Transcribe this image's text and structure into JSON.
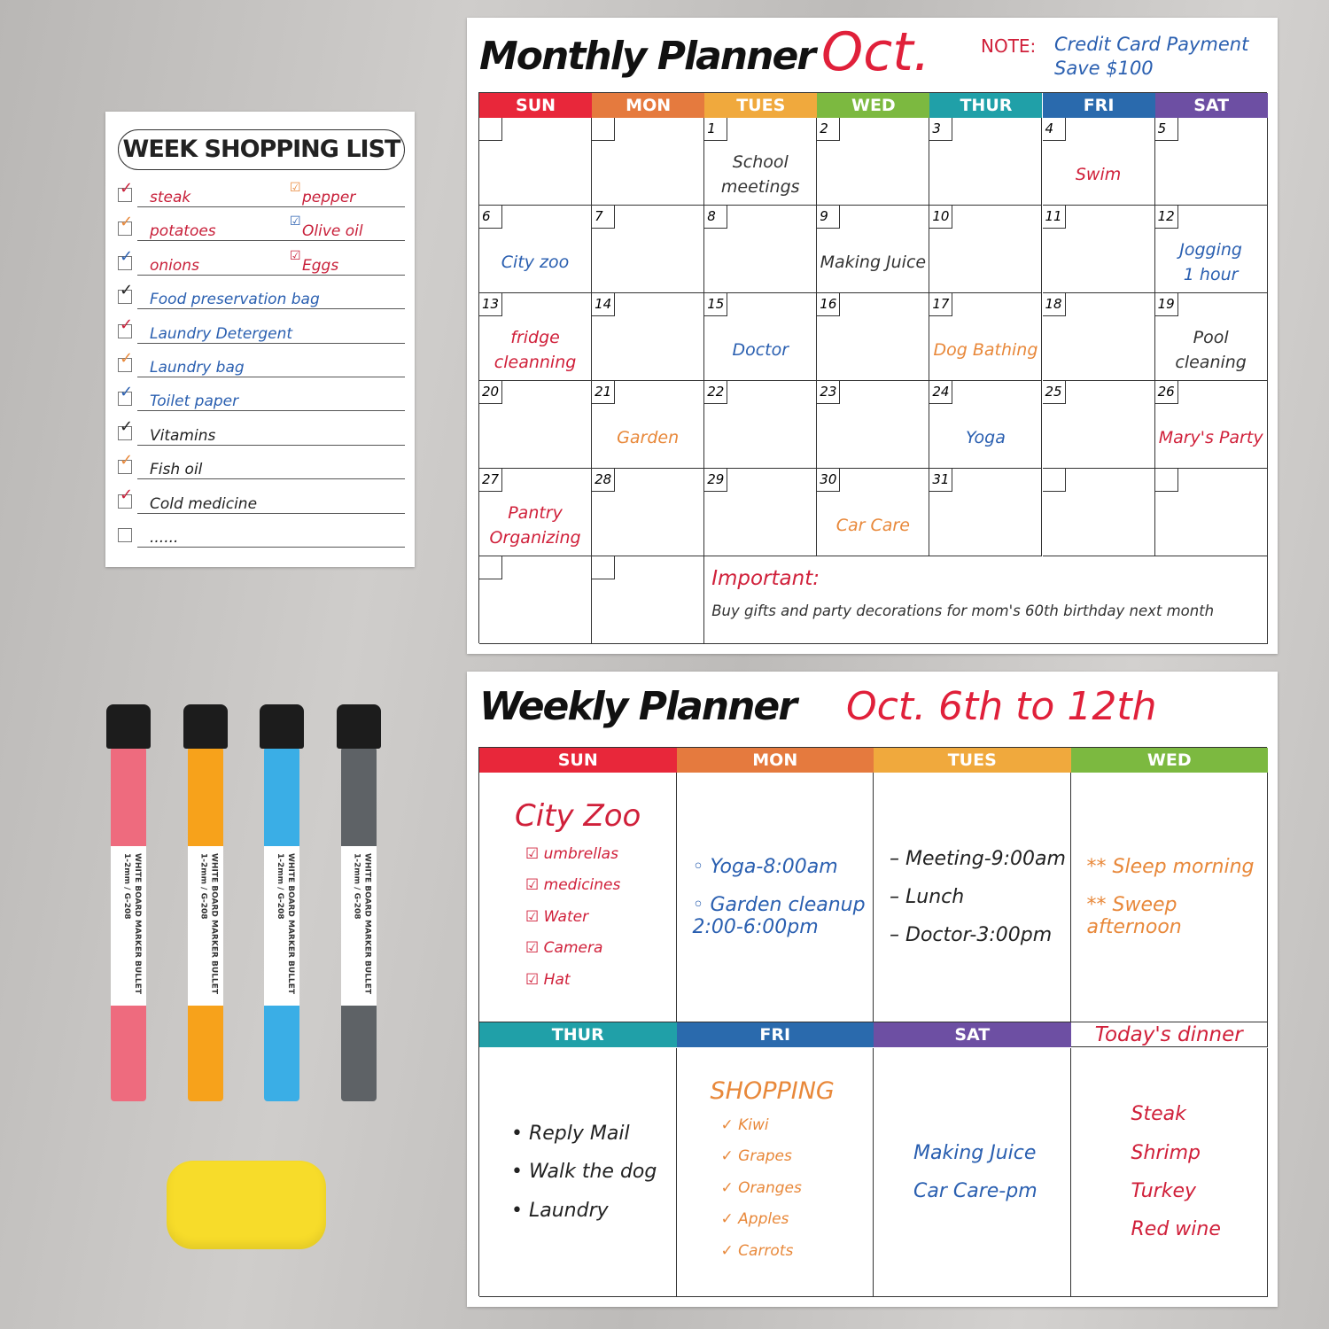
{
  "shopping_list": {
    "title": "WEEK SHOPPING LIST",
    "rows": [
      {
        "item": "steak",
        "color": "#c8203a",
        "check": "#c8203a",
        "item2": "pepper",
        "color2": "#c8203a",
        "check2": "#e8883a"
      },
      {
        "item": "potatoes",
        "color": "#c8203a",
        "check": "#e8883a",
        "item2": "Olive oil",
        "color2": "#c8203a",
        "check2": "#2a5fb0"
      },
      {
        "item": "onions",
        "color": "#c8203a",
        "check": "#2a5fb0",
        "item2": "Eggs",
        "color2": "#c8203a",
        "check2": "#c8203a"
      },
      {
        "item": "Food preservation bag",
        "color": "#2a5fb0",
        "check": "#222"
      },
      {
        "item": "Laundry Detergent",
        "color": "#2a5fb0",
        "check": "#c8203a"
      },
      {
        "item": "Laundry bag",
        "color": "#2a5fb0",
        "check": "#e8883a"
      },
      {
        "item": "Toilet paper",
        "color": "#2a5fb0",
        "check": "#2a5fb0"
      },
      {
        "item": "Vitamins",
        "color": "#222",
        "check": "#222"
      },
      {
        "item": "Fish oil",
        "color": "#222",
        "check": "#e8883a"
      },
      {
        "item": "Cold medicine",
        "color": "#222",
        "check": "#c8203a"
      },
      {
        "item": "......",
        "color": "#222",
        "check": ""
      }
    ]
  },
  "monthly": {
    "title": "Monthly Planner",
    "month": "Oct.",
    "note_label": "NOTE:",
    "note_line1": "Credit Card Payment",
    "note_line2": "Save $100",
    "days": [
      {
        "label": "SUN",
        "color": "#e8273a"
      },
      {
        "label": "MON",
        "color": "#e57a3e"
      },
      {
        "label": "TUES",
        "color": "#f0a93d"
      },
      {
        "label": "WED",
        "color": "#7cb940"
      },
      {
        "label": "THUR",
        "color": "#20a0a8"
      },
      {
        "label": "FRI",
        "color": "#2a6aad"
      },
      {
        "label": "SAT",
        "color": "#6d4fa3"
      }
    ],
    "cells": [
      {
        "day": "",
        "note": ""
      },
      {
        "day": "",
        "note": ""
      },
      {
        "day": "1",
        "note": "School\nmeetings",
        "color": "#333"
      },
      {
        "day": "2",
        "note": ""
      },
      {
        "day": "3",
        "note": ""
      },
      {
        "day": "4",
        "note": "Swim",
        "color": "#d0203a"
      },
      {
        "day": "5",
        "note": ""
      },
      {
        "day": "6",
        "note": "City zoo",
        "color": "#2a5fb0"
      },
      {
        "day": "7",
        "note": ""
      },
      {
        "day": "8",
        "note": ""
      },
      {
        "day": "9",
        "note": "Making Juice",
        "color": "#333"
      },
      {
        "day": "10",
        "note": ""
      },
      {
        "day": "11",
        "note": ""
      },
      {
        "day": "12",
        "note": "Jogging\n1 hour",
        "color": "#2a5fb0"
      },
      {
        "day": "13",
        "note": "fridge\ncleanning",
        "color": "#d0203a"
      },
      {
        "day": "14",
        "note": ""
      },
      {
        "day": "15",
        "note": "Doctor",
        "color": "#2a5fb0"
      },
      {
        "day": "16",
        "note": ""
      },
      {
        "day": "17",
        "note": "Dog Bathing",
        "color": "#e8883a"
      },
      {
        "day": "18",
        "note": ""
      },
      {
        "day": "19",
        "note": "Pool cleaning",
        "color": "#333"
      },
      {
        "day": "20",
        "note": ""
      },
      {
        "day": "21",
        "note": "Garden",
        "color": "#e8883a"
      },
      {
        "day": "22",
        "note": ""
      },
      {
        "day": "23",
        "note": ""
      },
      {
        "day": "24",
        "note": "Yoga",
        "color": "#2a5fb0"
      },
      {
        "day": "25",
        "note": ""
      },
      {
        "day": "26",
        "note": "Mary's Party",
        "color": "#d0203a"
      },
      {
        "day": "27",
        "note": "Pantry\nOrganizing",
        "color": "#d0203a"
      },
      {
        "day": "28",
        "note": ""
      },
      {
        "day": "29",
        "note": ""
      },
      {
        "day": "30",
        "note": "Car Care",
        "color": "#e8883a"
      },
      {
        "day": "31",
        "note": ""
      },
      {
        "day": "",
        "note": ""
      },
      {
        "day": "",
        "note": ""
      },
      {
        "day": "",
        "note": ""
      },
      {
        "day": "",
        "note": ""
      }
    ],
    "important_label": "Important:",
    "important_text": "Buy gifts and party decorations for mom's 60th birthday next month"
  },
  "weekly": {
    "title": "Weekly Planner",
    "range": "Oct. 6th to 12th",
    "top_days": [
      {
        "label": "SUN",
        "color": "#e8273a"
      },
      {
        "label": "MON",
        "color": "#e57a3e"
      },
      {
        "label": "TUES",
        "color": "#f0a93d"
      },
      {
        "label": "WED",
        "color": "#7cb940"
      }
    ],
    "bottom_days": [
      {
        "label": "THUR",
        "color": "#20a0a8"
      },
      {
        "label": "FRI",
        "color": "#2a6aad"
      },
      {
        "label": "SAT",
        "color": "#6d4fa3"
      }
    ],
    "dinner_label": "Today's dinner",
    "sun": {
      "heading": "City Zoo",
      "items": [
        "umbrellas",
        "medicines",
        "Water",
        "Camera",
        "Hat"
      ]
    },
    "mon": {
      "items": [
        "Yoga-8:00am",
        "Garden cleanup\n2:00-6:00pm"
      ]
    },
    "tues": {
      "items": [
        "Meeting-9:00am",
        "Lunch",
        "Doctor-3:00pm"
      ]
    },
    "wed": {
      "items": [
        "** Sleep morning",
        "** Sweep afternoon"
      ]
    },
    "thur": {
      "items": [
        "Reply Mail",
        "Walk the dog",
        "Laundry"
      ]
    },
    "fri": {
      "heading": "SHOPPING",
      "items": [
        "Kiwi",
        "Grapes",
        "Oranges",
        "Apples",
        "Carrots"
      ]
    },
    "sat": {
      "items": [
        "Making Juice",
        "Car Care-pm"
      ]
    },
    "dinner": {
      "items": [
        "Steak",
        "Shrimp",
        "Turkey",
        "Red wine"
      ]
    }
  },
  "markers": [
    {
      "color": "#ee6b7e",
      "label": "WHITE BOARD MARKER BULLET 1-2mm / G-208"
    },
    {
      "color": "#f7a21b",
      "label": "WHITE BOARD MARKER BULLET 1-2mm / G-208"
    },
    {
      "color": "#3aaee6",
      "label": "WHITE BOARD MARKER BULLET 1-2mm / G-208"
    },
    {
      "color": "#5e6266",
      "label": "WHITE BOARD MARKER BULLET 1-2mm / G-208"
    }
  ]
}
